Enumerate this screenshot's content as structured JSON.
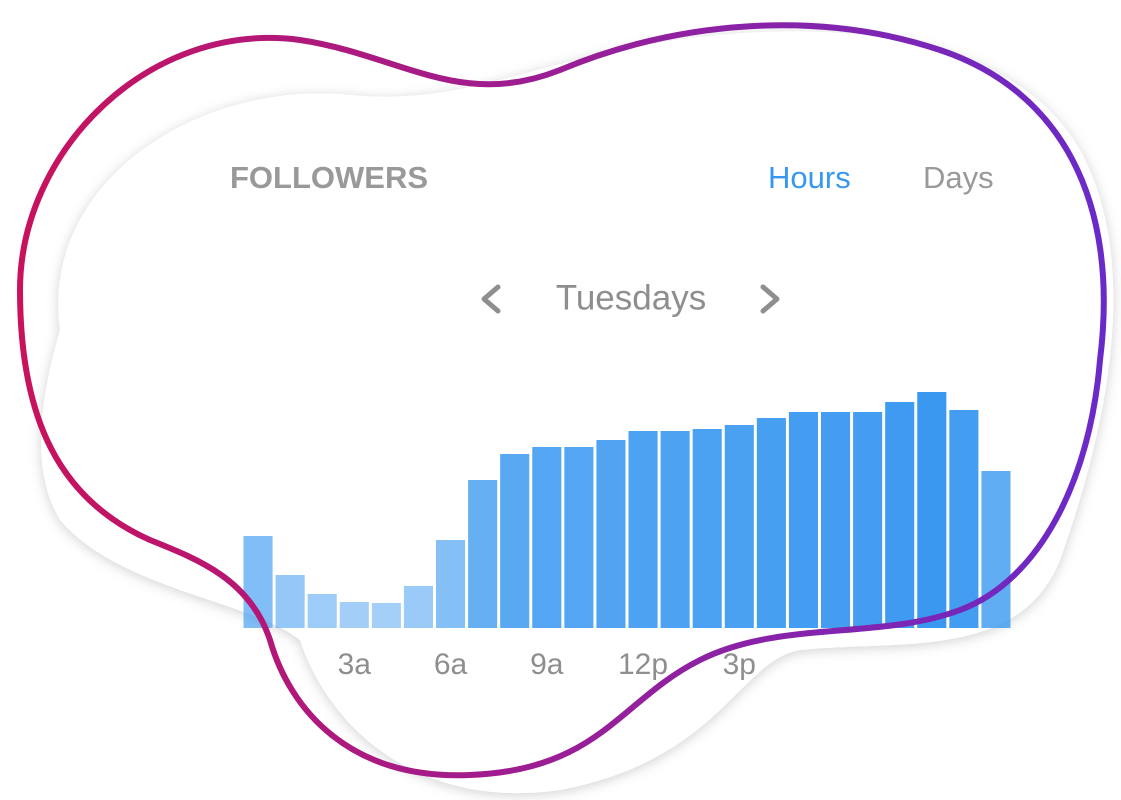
{
  "chart_data": {
    "type": "bar",
    "title": "FOLLOWERS",
    "tabs": [
      "Hours",
      "Days"
    ],
    "active_tab": 0,
    "period": "Tuesdays",
    "categories": [
      null,
      null,
      null,
      "3a",
      null,
      null,
      "6a",
      null,
      null,
      "9a",
      null,
      null,
      "12p",
      null,
      null,
      "3p",
      null,
      null,
      null,
      null,
      null,
      null,
      null,
      null
    ],
    "values": [
      92,
      53,
      34,
      26,
      25,
      42,
      88,
      148,
      174,
      181,
      181,
      188,
      197,
      197,
      199,
      203,
      210,
      216,
      216,
      216,
      226,
      236,
      218,
      157
    ],
    "color": "#3897f0",
    "ylim": [
      0,
      240
    ]
  }
}
